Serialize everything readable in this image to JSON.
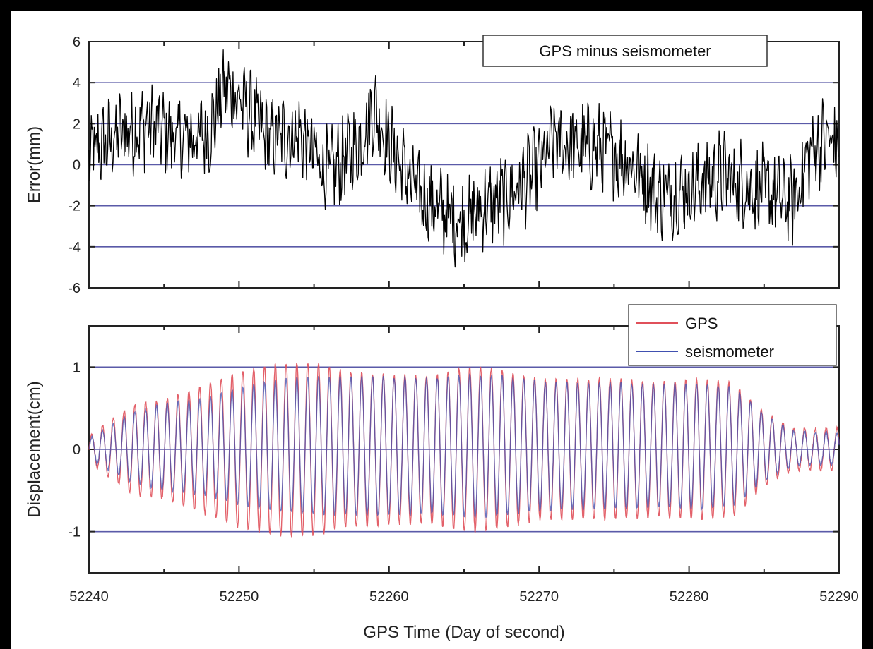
{
  "chart_data": [
    {
      "type": "line",
      "title": "",
      "annotation": "GPS minus seismometer",
      "xlabel": "",
      "ylabel": "Error(mm)",
      "xlim": [
        52240,
        52290
      ],
      "ylim": [
        -6,
        6
      ],
      "yticks": [
        "-6",
        "-4",
        "-2",
        "0",
        "2",
        "4",
        "6"
      ],
      "grid": "horizontal",
      "series": [
        {
          "color": "#000000",
          "x": [
            52240,
            52242,
            52244,
            52246,
            52248,
            52249,
            52250,
            52252,
            52254,
            52256,
            52258,
            52259,
            52260,
            52262,
            52264,
            52265,
            52266,
            52268,
            52270,
            52271,
            52272,
            52274,
            52276,
            52278,
            52280,
            52282,
            52284,
            52286,
            52287,
            52288,
            52289,
            52290
          ],
          "values": [
            0.5,
            1.5,
            2.0,
            1.2,
            1.5,
            3.8,
            3.2,
            1.2,
            1.5,
            -0.5,
            1.0,
            2.8,
            1.0,
            -1.5,
            -2.5,
            -2.8,
            -2.2,
            -1.5,
            -0.2,
            1.2,
            0.9,
            0.8,
            0.2,
            -1.5,
            -1.2,
            -0.5,
            -1.0,
            -1.6,
            -1.8,
            0.5,
            1.2,
            1.0
          ]
        }
      ]
    },
    {
      "type": "line",
      "title": "",
      "xlabel": "GPS Time (Day of second)",
      "ylabel": "Displacement(cm)",
      "xlim": [
        52240,
        52290
      ],
      "ylim": [
        -1.5,
        1.5
      ],
      "xticks": [
        "52240",
        "52250",
        "52260",
        "52270",
        "52280",
        "52290"
      ],
      "yticks": [
        "-1",
        "0",
        "1"
      ],
      "grid": "horizontal",
      "legend": "top-right",
      "oscillation_period": 0.72,
      "envelope_x": [
        52240,
        52241,
        52243,
        52245,
        52248,
        52250,
        52253,
        52255,
        52257,
        52260,
        52263,
        52265,
        52267,
        52270,
        52272,
        52275,
        52278,
        52281,
        52283,
        52285,
        52287,
        52290
      ],
      "series": [
        {
          "name": "GPS",
          "color": "#e0505a",
          "amplitude": [
            0.15,
            0.3,
            0.55,
            0.6,
            0.8,
            0.95,
            1.05,
            1.05,
            0.95,
            0.9,
            0.9,
            1.0,
            0.98,
            0.85,
            0.85,
            0.85,
            0.82,
            0.85,
            0.8,
            0.45,
            0.25,
            0.25
          ]
        },
        {
          "name": "seismometer",
          "color": "#4050b0",
          "amplitude": [
            0.12,
            0.25,
            0.45,
            0.55,
            0.62,
            0.75,
            0.85,
            0.88,
            0.88,
            0.88,
            0.86,
            0.9,
            0.9,
            0.82,
            0.8,
            0.8,
            0.78,
            0.8,
            0.75,
            0.42,
            0.22,
            0.2
          ]
        }
      ]
    }
  ]
}
